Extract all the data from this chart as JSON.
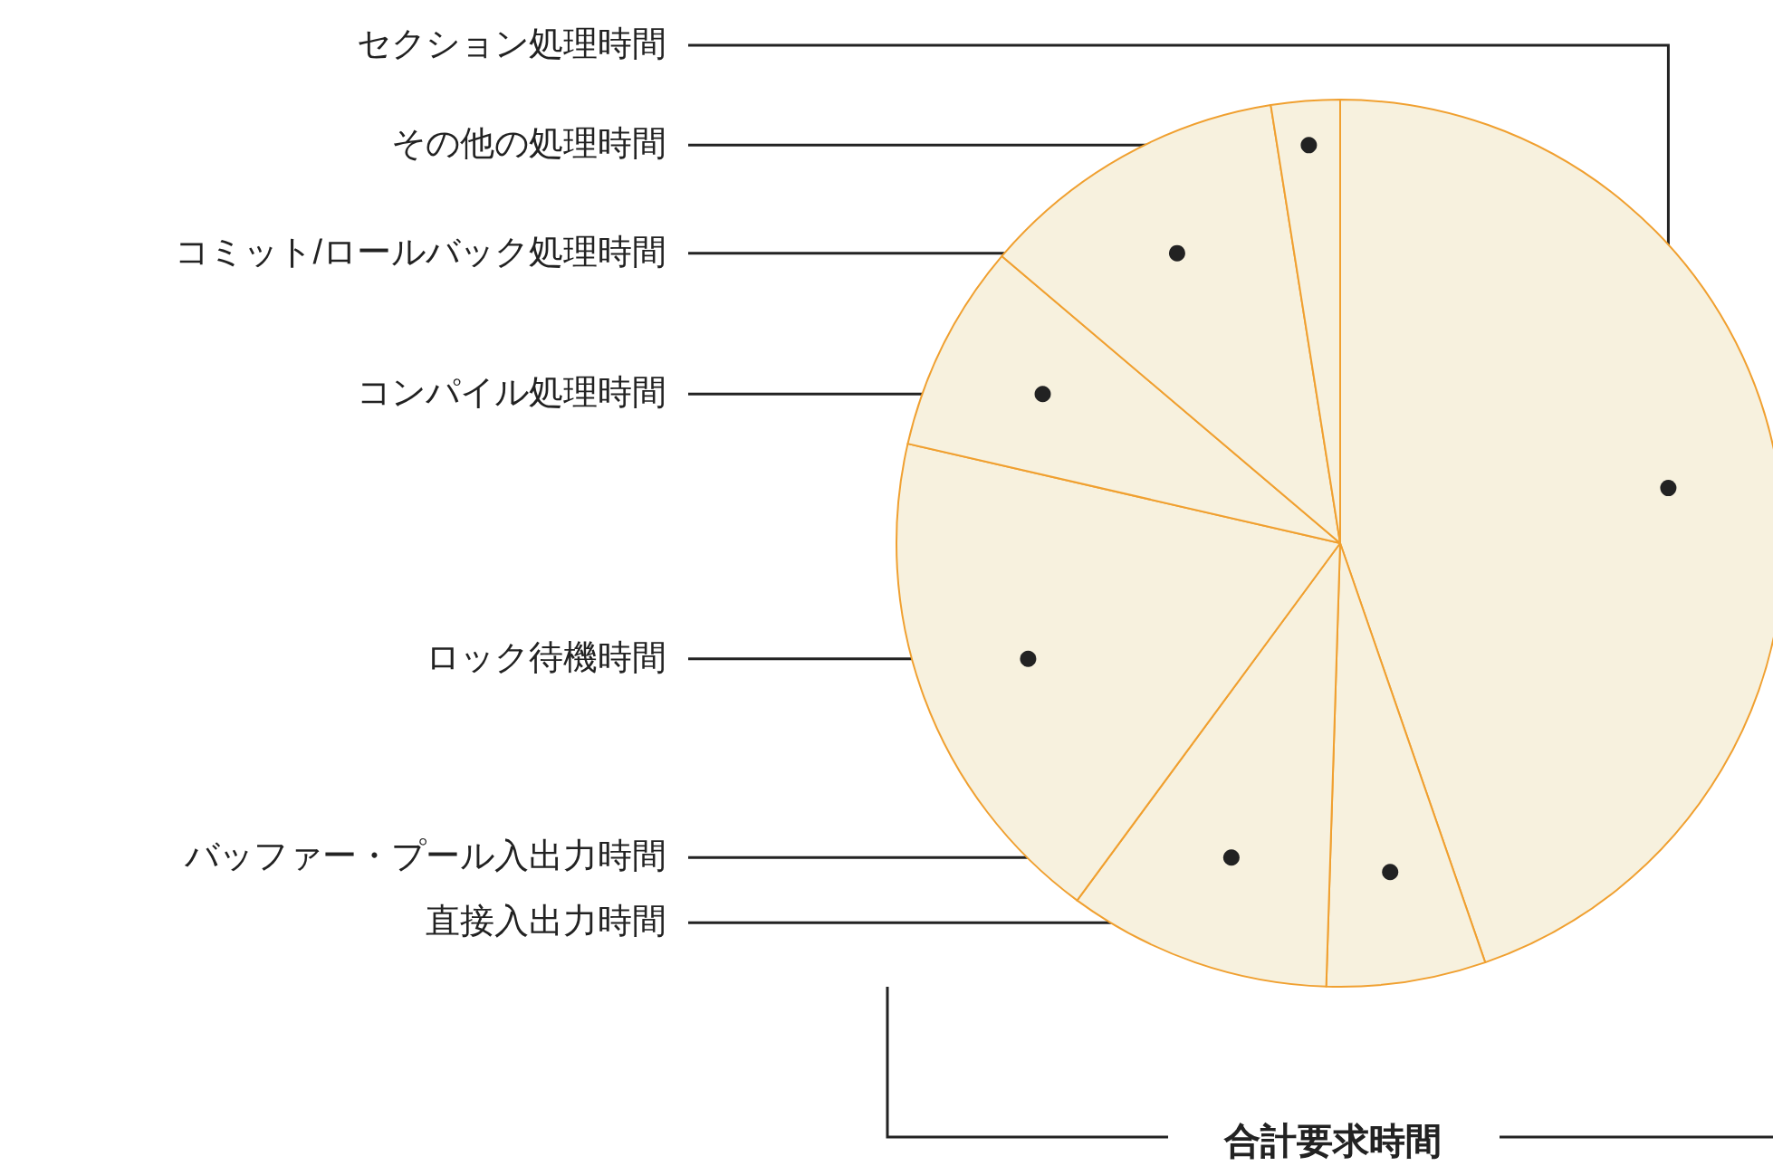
{
  "chart_data": {
    "type": "pie",
    "categories": [
      "セクション処理時間",
      "直接入出力時間",
      "バッファー・プール入出力時間",
      "ロック待機時間",
      "コンパイル処理時間",
      "コミット/ロールバック処理時間",
      "その他の処理時間"
    ],
    "values": [
      44.7,
      5.8,
      9.6,
      18.5,
      7.6,
      11.3,
      2.5
    ],
    "colors": [
      "#f7f1de",
      "#f7f1de",
      "#f7f1de",
      "#f7f1de",
      "#f7f1de",
      "#f7f1de",
      "#f7f1de"
    ],
    "annotations": [
      "合計要求時間"
    ]
  }
}
